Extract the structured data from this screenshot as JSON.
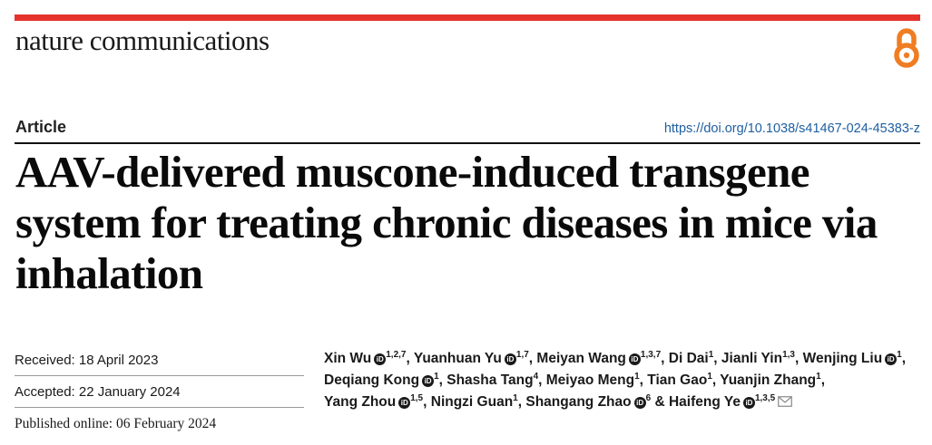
{
  "journal": {
    "name": "nature communications",
    "open_access_icon": "open-access-lock-icon",
    "brand_color": "#e4332b",
    "oa_color": "#f07d22"
  },
  "article": {
    "type": "Article",
    "doi": "https://doi.org/10.1038/s41467-024-45383-z",
    "title": "AAV-delivered muscone-induced transgene system for treating chronic diseases in mice via inhalation"
  },
  "dates": {
    "received_label": "Received: ",
    "received_value": "18 April 2023",
    "accepted_label": "Accepted: ",
    "accepted_value": "22 January 2024",
    "published_label": "Published online: ",
    "published_value": "06 February 2024"
  },
  "authors": [
    {
      "name": "Xin Wu",
      "orcid": true,
      "aff": "1,2,7",
      "sep": ", "
    },
    {
      "name": "Yuanhuan Yu",
      "orcid": true,
      "aff": "1,7",
      "sep": ", "
    },
    {
      "name": "Meiyan Wang",
      "orcid": true,
      "aff": "1,3,7",
      "sep": ", "
    },
    {
      "name": "Di Dai",
      "orcid": false,
      "aff": "1",
      "sep": ", "
    },
    {
      "name": "Jianli Yin",
      "orcid": false,
      "aff": "1,3",
      "sep": ", "
    },
    {
      "name": "Wenjing Liu",
      "orcid": true,
      "aff": "1",
      "sep": ", "
    },
    {
      "name": "Deqiang Kong",
      "orcid": true,
      "aff": "1",
      "sep": ", "
    },
    {
      "name": "Shasha Tang",
      "orcid": false,
      "aff": "4",
      "sep": ", "
    },
    {
      "name": "Meiyao Meng",
      "orcid": false,
      "aff": "1",
      "sep": ", "
    },
    {
      "name": "Tian Gao",
      "orcid": false,
      "aff": "1",
      "sep": ", "
    },
    {
      "name": "Yuanjin Zhang",
      "orcid": false,
      "aff": "1",
      "sep": ", "
    },
    {
      "name": "Yang Zhou",
      "orcid": true,
      "aff": "1,5",
      "sep": ", "
    },
    {
      "name": "Ningzi Guan",
      "orcid": false,
      "aff": "1",
      "sep": ", "
    },
    {
      "name": "Shangang Zhao",
      "orcid": true,
      "aff": "6",
      "sep": " & "
    },
    {
      "name": "Haifeng Ye",
      "orcid": true,
      "aff": "1,3,5",
      "sep": "",
      "corresponding": true
    }
  ],
  "icons": {
    "orcid": "orcid-icon",
    "mail": "mail-icon",
    "orcid_glyph": "iD"
  }
}
